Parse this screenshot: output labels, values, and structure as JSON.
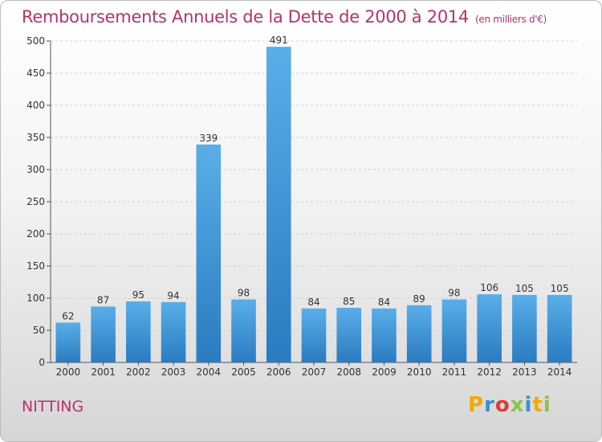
{
  "header": {
    "title": "Remboursements Annuels de la Dette de 2000 à 2014",
    "unit": "(en milliers d'€)"
  },
  "footer": {
    "commune": "NITTING",
    "logo_text": "Proxiti",
    "logo_colors": [
      "#f2a900",
      "#3a8fd4",
      "#e53935",
      "#8bc34a",
      "#3a8fd4",
      "#f2a900",
      "#8bc34a"
    ]
  },
  "chart_data": {
    "type": "bar",
    "title": "Remboursements Annuels de la Dette de 2000 à 2014",
    "categories": [
      "2000",
      "2001",
      "2002",
      "2003",
      "2004",
      "2005",
      "2006",
      "2007",
      "2008",
      "2009",
      "2010",
      "2011",
      "2012",
      "2013",
      "2014"
    ],
    "values": [
      62,
      87,
      95,
      94,
      339,
      98,
      491,
      84,
      85,
      84,
      89,
      98,
      106,
      105,
      105
    ],
    "ylim": [
      0,
      500
    ],
    "yticks": [
      0,
      50,
      100,
      150,
      200,
      250,
      300,
      350,
      400,
      450,
      500
    ],
    "grid": true,
    "bar_color_top": "#5aaee8",
    "bar_color_bottom": "#2a7bc0"
  }
}
